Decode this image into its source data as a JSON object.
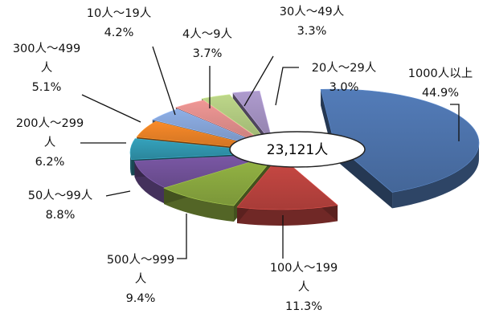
{
  "chart_data": {
    "type": "pie",
    "title": "",
    "center_label": "23,121人",
    "slices": [
      {
        "category": "1000人以上",
        "percent_label": "44.9%",
        "value": 44.9,
        "color": "#4a6fa5"
      },
      {
        "category": "100人～199人",
        "percent_label": "11.3%",
        "value": 11.3,
        "color": "#b5413d"
      },
      {
        "category": "500人～999人",
        "percent_label": "9.4%",
        "value": 9.4,
        "color": "#86a33e"
      },
      {
        "category": "50人～99人",
        "percent_label": "8.8%",
        "value": 8.8,
        "color": "#6e4f94"
      },
      {
        "category": "200人～299人",
        "percent_label": "6.2%",
        "value": 6.2,
        "color": "#2f91a8"
      },
      {
        "category": "300人～499人",
        "percent_label": "5.1%",
        "value": 5.1,
        "color": "#de7b25"
      },
      {
        "category": "10人～19人",
        "percent_label": "4.2%",
        "value": 4.2,
        "color": "#7f9ccd"
      },
      {
        "category": "4人～9人",
        "percent_label": "3.7%",
        "value": 3.7,
        "color": "#d58785"
      },
      {
        "category": "30人～49人",
        "percent_label": "3.3%",
        "value": 3.3,
        "color": "#a9c07a"
      },
      {
        "category": "20人～29人",
        "percent_label": "3.0%",
        "value": 3.0,
        "color": "#9b8ab8"
      }
    ],
    "exploded": true,
    "style": "3d"
  }
}
